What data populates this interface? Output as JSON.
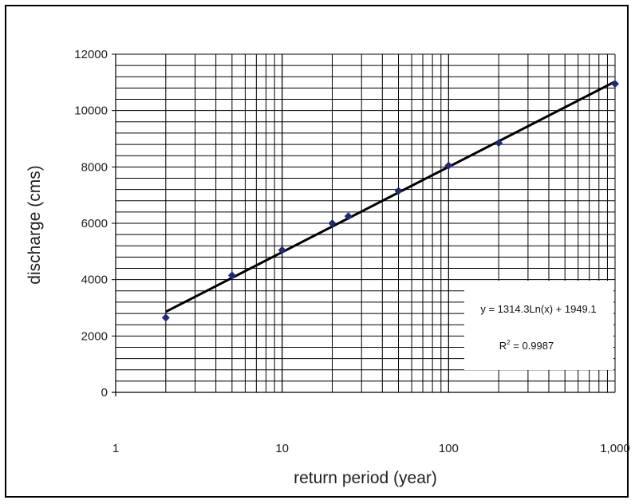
{
  "chart_data": {
    "type": "scatter",
    "xlabel": "return period (year)",
    "ylabel": "discharge (cms)",
    "x_scale": "log",
    "xlim": [
      1,
      1000
    ],
    "ylim": [
      0,
      12000
    ],
    "x_tick_labels": [
      "1",
      "10",
      "100",
      "1,000"
    ],
    "y_tick_labels": [
      "0",
      "2000",
      "4000",
      "6000",
      "8000",
      "10000",
      "12000"
    ],
    "grid": true,
    "series": [
      {
        "marker_color": "#1f2a7a",
        "x": [
          2,
          5,
          10,
          20,
          25,
          50,
          100,
          200,
          1000
        ],
        "y": [
          2650,
          4150,
          5050,
          6000,
          6250,
          7150,
          8050,
          8850,
          10950
        ]
      }
    ],
    "trendline": {
      "equation": "y = 1314.3Ln(x) + 1949.1",
      "r2_prefix": "R",
      "r2_sup": "2",
      "r2_rest": " = 0.9987",
      "a": 1314.3,
      "b": 1949.1,
      "x_range": [
        2,
        1000
      ],
      "color": "#000000"
    }
  }
}
